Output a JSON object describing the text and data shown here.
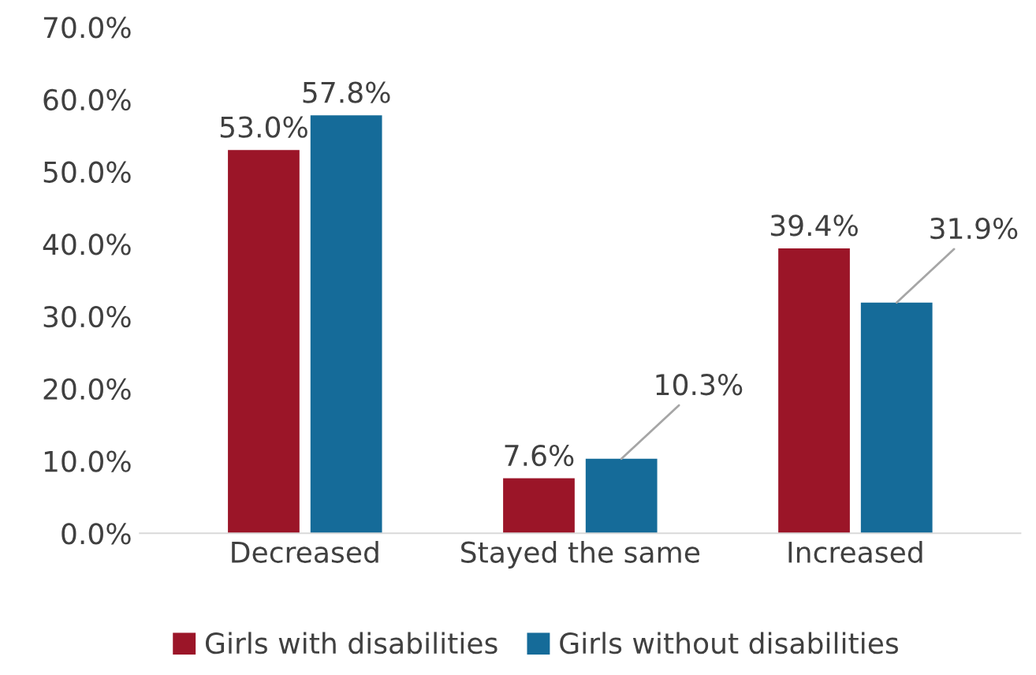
{
  "chart_data": {
    "type": "bar",
    "categories": [
      "Decreased",
      "Stayed the same",
      "Increased"
    ],
    "series": [
      {
        "name": "Girls with disabilities",
        "color": "#9b1528",
        "values": [
          53.0,
          7.6,
          39.4
        ],
        "value_labels": [
          "53.0%",
          "7.6%",
          "39.4%"
        ]
      },
      {
        "name": "Girls without disabilities",
        "color": "#156b99",
        "values": [
          57.8,
          10.3,
          31.9
        ],
        "value_labels": [
          "57.8%",
          "10.3%",
          "31.9%"
        ]
      }
    ],
    "ylim": [
      0,
      70
    ],
    "yticks": [
      {
        "value": 0,
        "label": "0.0%"
      },
      {
        "value": 10,
        "label": "10.0%"
      },
      {
        "value": 20,
        "label": "20.0%"
      },
      {
        "value": 30,
        "label": "30.0%"
      },
      {
        "value": 40,
        "label": "40.0%"
      },
      {
        "value": 50,
        "label": "50.0%"
      },
      {
        "value": 60,
        "label": "60.0%"
      },
      {
        "value": 70,
        "label": "70.0%"
      }
    ],
    "grid": false,
    "legend": "bottom"
  }
}
